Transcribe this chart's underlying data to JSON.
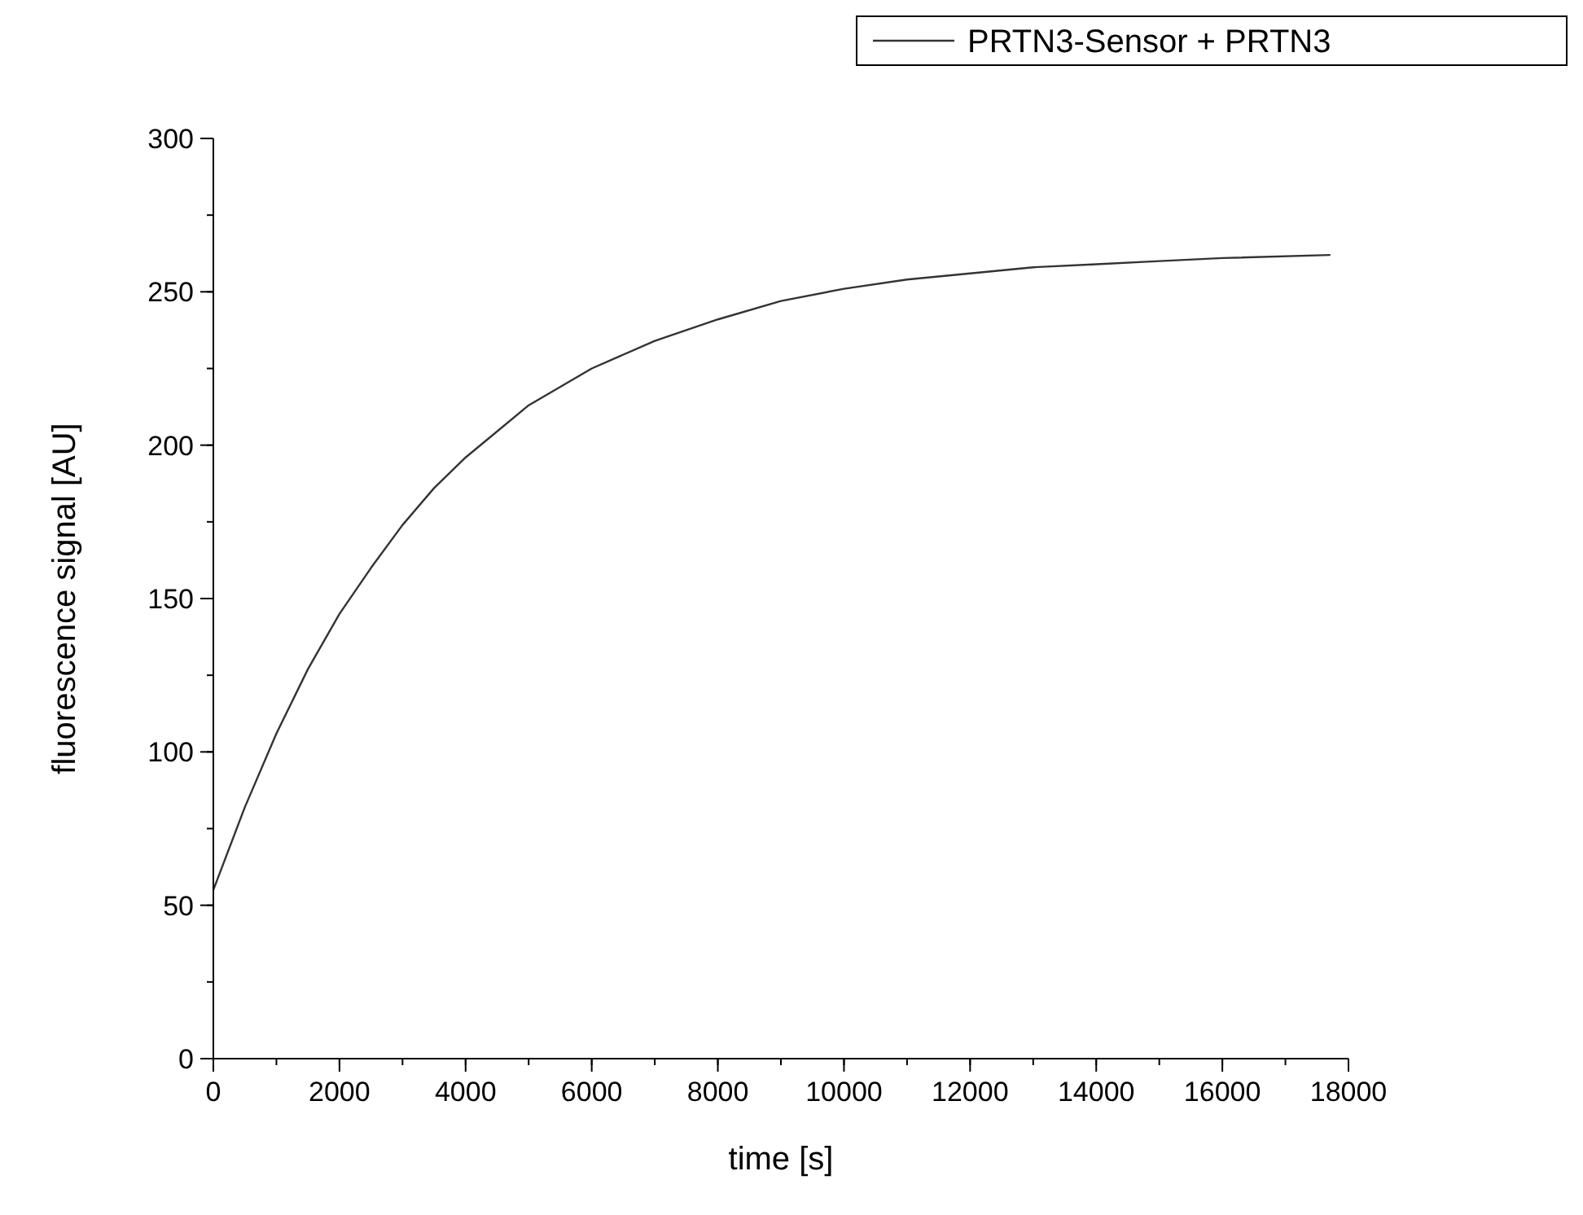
{
  "chart_data": {
    "type": "line",
    "xlabel": "time [s]",
    "ylabel": "fluorescence signal [AU]",
    "x": [
      0,
      500,
      1000,
      1500,
      2000,
      2500,
      3000,
      3500,
      4000,
      5000,
      6000,
      7000,
      8000,
      9000,
      10000,
      11000,
      12000,
      13000,
      14000,
      15000,
      16000,
      17700
    ],
    "series": [
      {
        "name": "PRTN3-Sensor + PRTN3",
        "color": "#333333",
        "values": [
          55,
          82,
          106,
          127,
          145,
          160,
          174,
          186,
          196,
          213,
          225,
          234,
          241,
          247,
          251,
          254,
          256,
          258,
          259,
          260,
          261,
          262
        ]
      }
    ],
    "xlim": [
      0,
      18000
    ],
    "xticks": [
      0,
      2000,
      4000,
      6000,
      8000,
      10000,
      12000,
      14000,
      16000,
      18000
    ],
    "ylim": [
      0,
      300
    ],
    "yticks": [
      0,
      50,
      100,
      150,
      200,
      250,
      300
    ],
    "grid": false,
    "legend": "top right",
    "marker": "none",
    "line_style": "solid"
  }
}
